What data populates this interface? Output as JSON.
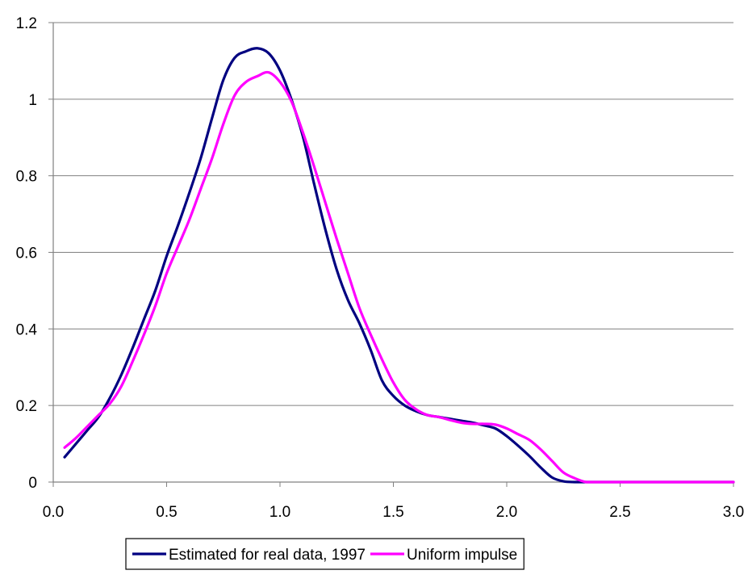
{
  "chart_data": {
    "type": "line",
    "title": "",
    "xlabel": "",
    "ylabel": "",
    "xlim": [
      0,
      3
    ],
    "ylim": [
      0,
      1.2
    ],
    "x_ticks": [
      "0.0",
      "0.5",
      "1.0",
      "1.5",
      "2.0",
      "2.5",
      "3.0"
    ],
    "y_ticks": [
      "0",
      "0.2",
      "0.4",
      "0.6",
      "0.8",
      "1",
      "1.2"
    ],
    "grid": "horizontal",
    "legend": "bottom",
    "x": [
      0.05,
      0.1,
      0.15,
      0.2,
      0.25,
      0.3,
      0.35,
      0.4,
      0.45,
      0.5,
      0.55,
      0.6,
      0.65,
      0.7,
      0.75,
      0.8,
      0.85,
      0.9,
      0.95,
      1.0,
      1.05,
      1.1,
      1.15,
      1.2,
      1.25,
      1.3,
      1.35,
      1.4,
      1.45,
      1.5,
      1.55,
      1.6,
      1.65,
      1.7,
      1.75,
      1.8,
      1.85,
      1.9,
      1.95,
      2.0,
      2.05,
      2.1,
      2.15,
      2.2,
      2.25,
      2.3,
      2.35,
      2.4,
      2.45,
      2.5,
      2.55,
      2.6,
      2.65,
      2.7,
      2.75,
      2.8,
      2.85,
      2.9,
      2.95,
      3.0
    ],
    "series": [
      {
        "name": "Estimated for real data, 1997",
        "color": "#000080",
        "values": [
          0.065,
          0.1,
          0.135,
          0.17,
          0.22,
          0.28,
          0.35,
          0.425,
          0.5,
          0.59,
          0.67,
          0.755,
          0.845,
          0.95,
          1.05,
          1.108,
          1.125,
          1.133,
          1.12,
          1.075,
          1.0,
          0.905,
          0.78,
          0.66,
          0.555,
          0.475,
          0.415,
          0.345,
          0.265,
          0.225,
          0.2,
          0.185,
          0.175,
          0.17,
          0.165,
          0.16,
          0.155,
          0.148,
          0.14,
          0.12,
          0.095,
          0.068,
          0.038,
          0.012,
          0.002,
          0,
          0,
          0,
          0,
          0,
          0,
          0,
          0,
          0,
          0,
          0,
          0,
          0,
          0,
          0
        ]
      },
      {
        "name": "Uniform impulse",
        "color": "#ff00ff",
        "values": [
          0.09,
          0.115,
          0.145,
          0.175,
          0.205,
          0.25,
          0.315,
          0.385,
          0.46,
          0.545,
          0.615,
          0.685,
          0.765,
          0.845,
          0.935,
          1.01,
          1.045,
          1.06,
          1.07,
          1.045,
          0.995,
          0.915,
          0.825,
          0.73,
          0.635,
          0.545,
          0.455,
          0.385,
          0.32,
          0.26,
          0.215,
          0.19,
          0.175,
          0.17,
          0.162,
          0.155,
          0.152,
          0.152,
          0.15,
          0.14,
          0.125,
          0.11,
          0.085,
          0.055,
          0.025,
          0.01,
          0,
          0,
          0,
          0,
          0,
          0,
          0,
          0,
          0,
          0,
          0,
          0,
          0,
          0
        ]
      }
    ]
  }
}
